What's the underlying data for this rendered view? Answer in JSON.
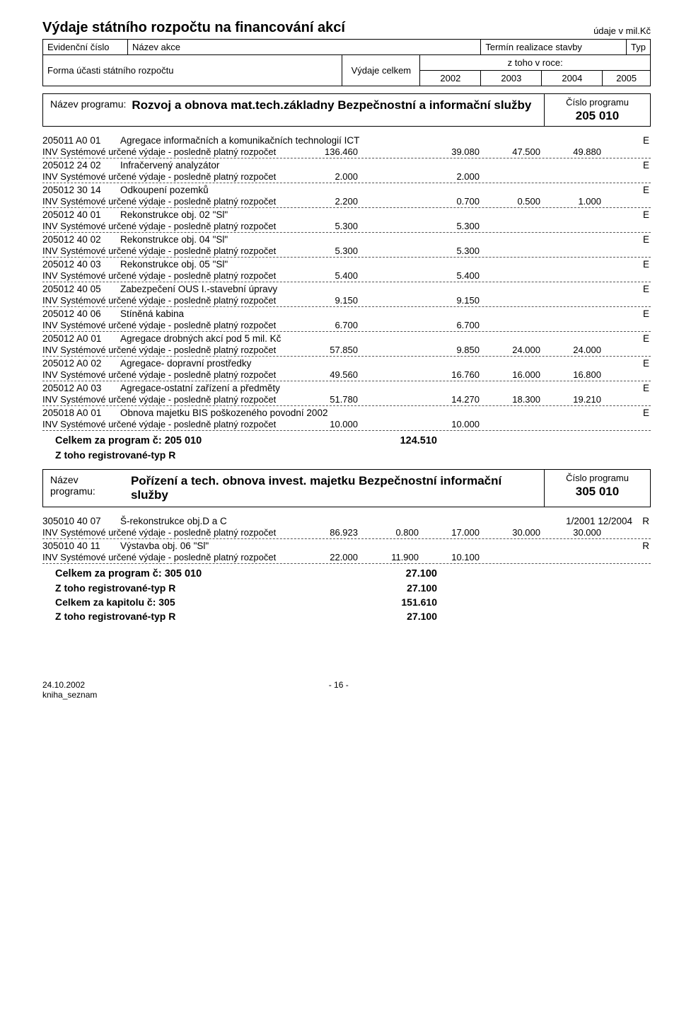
{
  "page": {
    "title": "Výdaje státního rozpočtu na financování akcí",
    "units": "údaje v mil.Kč",
    "header": {
      "col_ev": "Evidenční číslo",
      "col_name": "Název akce",
      "col_term": "Termín realizace stavby",
      "col_typ": "Typ",
      "col_form": "Forma účasti státního rozpočtu",
      "col_total": "Výdaje celkem",
      "col_sub": "z toho v roce:",
      "years": [
        "2002",
        "2003",
        "2004",
        "2005"
      ]
    }
  },
  "programs": [
    {
      "label": "Název programu:",
      "name": "Rozvoj a obnova mat.tech.základny Bezpečnostní a informační služby",
      "num_label": "Číslo programu",
      "number": "205 010",
      "items": [
        {
          "code": "205011 A0 01",
          "name": "Agregace informačních a komunikačních technologií ICT",
          "term": "",
          "typ": "E",
          "line_label": "INV Systémové určené výdaje - posledně platný rozpočet",
          "vals": [
            "136.460",
            "",
            "39.080",
            "47.500",
            "49.880"
          ]
        },
        {
          "code": "205012 24 02",
          "name": "Infračervený analyzátor",
          "term": "",
          "typ": "E",
          "line_label": "INV Systémové určené výdaje - posledně platný rozpočet",
          "vals": [
            "2.000",
            "",
            "2.000",
            "",
            ""
          ]
        },
        {
          "code": "205012 30 14",
          "name": "Odkoupení pozemků",
          "term": "",
          "typ": "E",
          "line_label": "INV Systémové určené výdaje - posledně platný rozpočet",
          "vals": [
            "2.200",
            "",
            "0.700",
            "0.500",
            "1.000"
          ]
        },
        {
          "code": "205012 40 01",
          "name": "Rekonstrukce obj. 02 \"Sl\"",
          "term": "",
          "typ": "E",
          "line_label": "INV Systémové určené výdaje - posledně platný rozpočet",
          "vals": [
            "5.300",
            "",
            "5.300",
            "",
            ""
          ]
        },
        {
          "code": "205012 40 02",
          "name": "Rekonstrukce obj. 04 \"Sl\"",
          "term": "",
          "typ": "E",
          "line_label": "INV Systémové určené výdaje - posledně platný rozpočet",
          "vals": [
            "5.300",
            "",
            "5.300",
            "",
            ""
          ]
        },
        {
          "code": "205012 40 03",
          "name": "Rekonstrukce obj. 05 \"Sl\"",
          "term": "",
          "typ": "E",
          "line_label": "INV Systémové určené výdaje - posledně platný rozpočet",
          "vals": [
            "5.400",
            "",
            "5.400",
            "",
            ""
          ]
        },
        {
          "code": "205012 40 05",
          "name": "Zabezpečení OUS I.-stavební úpravy",
          "term": "",
          "typ": "E",
          "line_label": "INV Systémové určené výdaje - posledně platný rozpočet",
          "vals": [
            "9.150",
            "",
            "9.150",
            "",
            ""
          ]
        },
        {
          "code": "205012 40 06",
          "name": "Stíněná kabina",
          "term": "",
          "typ": "E",
          "line_label": "INV Systémové určené výdaje - posledně platný rozpočet",
          "vals": [
            "6.700",
            "",
            "6.700",
            "",
            ""
          ]
        },
        {
          "code": "205012 A0 01",
          "name": "Agregace drobných akcí pod 5 mil. Kč",
          "term": "",
          "typ": "E",
          "line_label": "INV Systémové určené výdaje - posledně platný rozpočet",
          "vals": [
            "57.850",
            "",
            "9.850",
            "24.000",
            "24.000"
          ]
        },
        {
          "code": "205012 A0 02",
          "name": "Agregace- dopravní prostředky",
          "term": "",
          "typ": "E",
          "line_label": "INV Systémové určené výdaje - posledně platný rozpočet",
          "vals": [
            "49.560",
            "",
            "16.760",
            "16.000",
            "16.800"
          ]
        },
        {
          "code": "205012 A0 03",
          "name": "Agregace-ostatní zařízení a předměty",
          "term": "",
          "typ": "E",
          "line_label": "INV Systémové určené výdaje - posledně platný rozpočet",
          "vals": [
            "51.780",
            "",
            "14.270",
            "18.300",
            "19.210"
          ]
        },
        {
          "code": "205018 A0 01",
          "name": "Obnova majetku BIS poškozeného povodní 2002",
          "term": "",
          "typ": "E",
          "line_label": "INV Systémové určené výdaje - posledně platný rozpočet",
          "vals": [
            "10.000",
            "",
            "10.000",
            "",
            ""
          ]
        }
      ],
      "summary": [
        {
          "label": "Celkem za program č: 205 010",
          "val": "124.510"
        },
        {
          "label": "Z toho registrované-typ R",
          "val": ""
        }
      ]
    },
    {
      "label": "Název programu:",
      "name": "Pořízení a tech. obnova invest. majetku Bezpečnostní informační služby",
      "num_label": "Číslo programu",
      "number": "305 010",
      "items": [
        {
          "code": "305010 40 07",
          "name": "Š-rekonstrukce obj.D a C",
          "term": "1/2001  12/2004",
          "typ": "R",
          "line_label": "INV Systémové určené výdaje - posledně platný rozpočet",
          "vals": [
            "86.923",
            "0.800",
            "17.000",
            "30.000",
            "30.000"
          ]
        },
        {
          "code": "305010 40 11",
          "name": "Výstavba obj. 06 \"Sl\"",
          "term": "",
          "typ": "R",
          "line_label": "INV Systémové určené výdaje - posledně platný rozpočet",
          "vals": [
            "22.000",
            "11.900",
            "10.100",
            "",
            ""
          ]
        }
      ],
      "summary": [
        {
          "label": "Celkem za program č: 305 010",
          "val": "27.100"
        },
        {
          "label": "Z toho registrované-typ R",
          "val": "27.100"
        },
        {
          "label": "Celkem za kapitolu č:  305",
          "val": "151.610"
        },
        {
          "label": "Z toho registrované-typ R",
          "val": "27.100"
        }
      ]
    }
  ],
  "footer": {
    "date": "24.10.2002",
    "doc": "kniha_seznam",
    "page": "- 16 -"
  }
}
